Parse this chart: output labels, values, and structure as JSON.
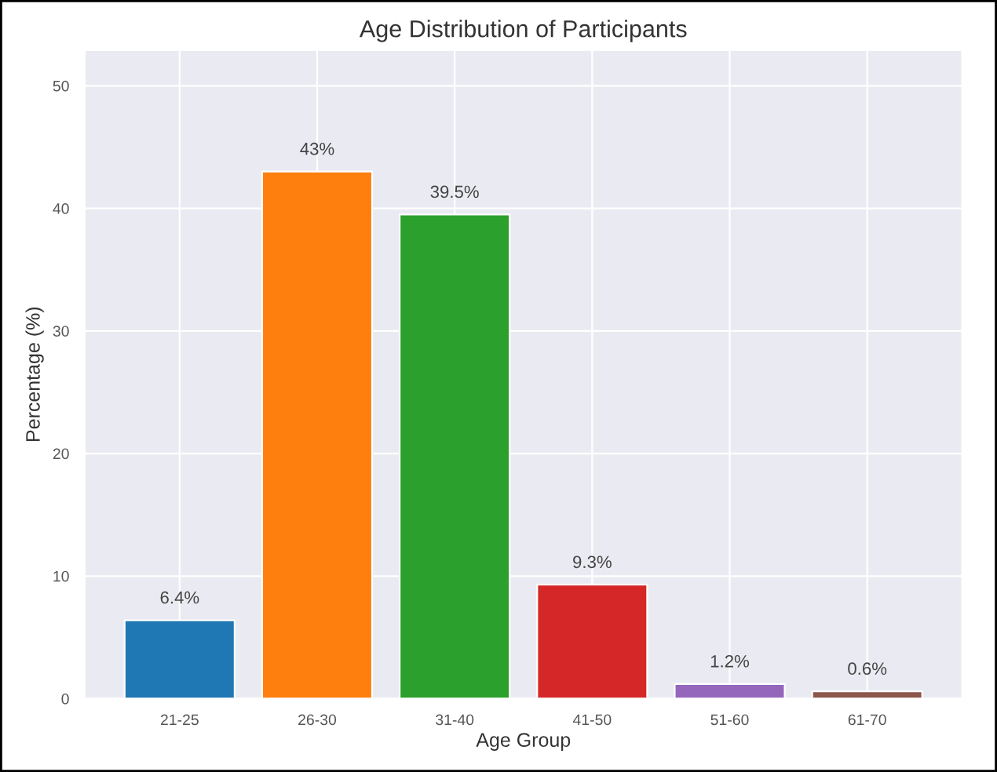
{
  "chart_data": {
    "type": "bar",
    "title": "Age Distribution of Participants",
    "xlabel": "Age Group",
    "ylabel": "Percentage (%)",
    "categories": [
      "21-25",
      "26-30",
      "31-40",
      "41-50",
      "51-60",
      "61-70"
    ],
    "values": [
      6.4,
      43,
      39.5,
      9.3,
      1.2,
      0.6
    ],
    "colors": [
      "#1f77b4",
      "#ff7f0e",
      "#2ca02c",
      "#d62728",
      "#9467bd",
      "#8c564b"
    ],
    "value_labels": [
      "6.4%",
      "43%",
      "39.5%",
      "9.3%",
      "1.2%",
      "0.6%"
    ],
    "ylim": [
      0,
      52.9
    ],
    "yticks": [
      0,
      10,
      20,
      30,
      40,
      50
    ],
    "grid": true
  }
}
